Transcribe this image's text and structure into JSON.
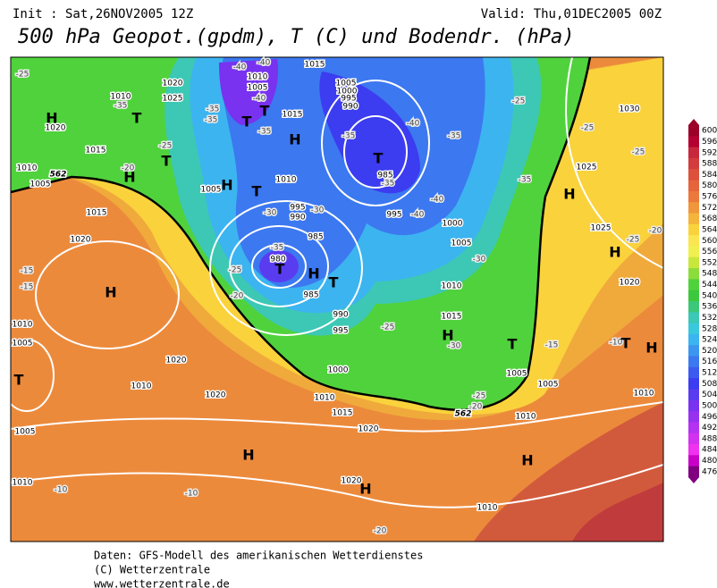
{
  "header": {
    "init": "Init : Sat,26NOV2005 12Z",
    "valid": "Valid: Thu,01DEC2005 00Z",
    "title": "500 hPa Geopot.(gpdm), T (C) und Bodendr. (hPa)"
  },
  "footer": {
    "line1": "Daten: GFS-Modell des amerikanischen Wetterdienstes",
    "line2": "(C) Wetterzentrale",
    "line3": "www.wetterzentrale.de"
  },
  "colorbar": {
    "levels": [
      600,
      596,
      592,
      588,
      584,
      580,
      576,
      572,
      568,
      564,
      560,
      556,
      552,
      548,
      544,
      540,
      536,
      532,
      528,
      524,
      520,
      516,
      512,
      508,
      504,
      500,
      496,
      492,
      488,
      484,
      480,
      476
    ],
    "colors": [
      "#9a0028",
      "#b40032",
      "#c8283c",
      "#d23c3c",
      "#dc503c",
      "#e6643c",
      "#ec783c",
      "#f0963c",
      "#f5b43c",
      "#fad23c",
      "#fae650",
      "#f0f050",
      "#c8e63c",
      "#8cdc3c",
      "#50d23c",
      "#3cc83c",
      "#3cc878",
      "#3cc8b4",
      "#3cc8dc",
      "#3cb4f0",
      "#3c96f0",
      "#3c78f0",
      "#3c5af0",
      "#3c3cf0",
      "#5a3cf0",
      "#7832f0",
      "#9632f0",
      "#b432f0",
      "#d232f0",
      "#f032f0",
      "#c800c8",
      "#800080"
    ]
  },
  "map": {
    "isobar_labels": [
      "1010",
      "1020",
      "1025",
      "1020",
      "1015",
      "1010",
      "1005",
      "1015",
      "1020",
      "1005",
      "1010",
      "1015",
      "1010",
      "1005",
      "1015",
      "1005",
      "1000",
      "995",
      "990",
      "985",
      "995",
      "1000",
      "1005",
      "995",
      "990",
      "985",
      "980",
      "985",
      "990",
      "995",
      "1000",
      "1010",
      "1015",
      "1020",
      "1020",
      "1010",
      "1010",
      "1005",
      "1005",
      "1010",
      "1020",
      "1020",
      "1010",
      "1015",
      "1005",
      "1005",
      "1010",
      "1010",
      "1025",
      "1030",
      "1025",
      "1020",
      "1010"
    ],
    "temperature_labels": [
      "-25",
      "-35",
      "-25",
      "-20",
      "-40",
      "-40",
      "-40",
      "-35",
      "-35",
      "-35",
      "-40",
      "-35",
      "-35",
      "-35",
      "-40",
      "-40",
      "-30",
      "-30",
      "-35",
      "-25",
      "-20",
      "-30",
      "-25",
      "-30",
      "-25",
      "-20",
      "-15",
      "-15",
      "-10",
      "-10",
      "-20",
      "-25",
      "-25",
      "-25",
      "-35",
      "-25",
      "-20",
      "-15",
      "-10"
    ],
    "pressure_centers": [
      "H",
      "T",
      "H",
      "T",
      "T",
      "T",
      "H",
      "H",
      "T",
      "T",
      "T",
      "H",
      "T",
      "H",
      "T",
      "H",
      "H",
      "H",
      "T",
      "H",
      "H",
      "H",
      "T",
      "H"
    ],
    "contour_552": [
      "562",
      "562"
    ]
  }
}
